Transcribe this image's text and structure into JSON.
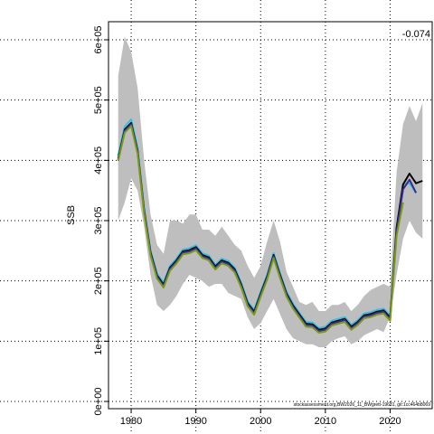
{
  "chart_data": {
    "type": "line",
    "ylabel": "SSB",
    "corner_label": "-0.074",
    "source_note": "stockassessment.org,BW2026_11_BWgrett-19681, git:1cc464b8069",
    "xlim": [
      1976.5,
      2026.5
    ],
    "ylim": [
      -12000,
      630000
    ],
    "x_ticks": [
      1980,
      1990,
      2000,
      2010,
      2020
    ],
    "x_tick_labels": [
      "1980",
      "1990",
      "2000",
      "2010",
      "2020"
    ],
    "y_ticks": [
      0,
      100000,
      200000,
      300000,
      400000,
      500000,
      600000
    ],
    "y_tick_labels": [
      "0e+00",
      "1e+05",
      "2e+05",
      "3e+05",
      "4e+05",
      "5e+05",
      "6e+05"
    ],
    "grid": "dotted",
    "band": {
      "x": [
        1978,
        1979,
        1980,
        1981,
        1982,
        1983,
        1984,
        1985,
        1986,
        1987,
        1988,
        1989,
        1990,
        1991,
        1992,
        1993,
        1994,
        1995,
        1996,
        1997,
        1998,
        1999,
        2000,
        2001,
        2002,
        2003,
        2004,
        2005,
        2006,
        2007,
        2008,
        2009,
        2010,
        2011,
        2012,
        2013,
        2014,
        2015,
        2016,
        2017,
        2018,
        2019,
        2020,
        2021,
        2022,
        2023,
        2024,
        2025
      ],
      "lower": [
        300000,
        330000,
        370000,
        350000,
        290000,
        210000,
        160000,
        150000,
        160000,
        175000,
        195000,
        210000,
        205000,
        200000,
        190000,
        195000,
        195000,
        180000,
        175000,
        170000,
        140000,
        120000,
        130000,
        150000,
        170000,
        145000,
        120000,
        105000,
        100000,
        95000,
        95000,
        90000,
        90000,
        100000,
        105000,
        108000,
        95000,
        100000,
        110000,
        115000,
        120000,
        115000,
        140000,
        210000,
        270000,
        300000,
        280000,
        270000
      ],
      "upper": [
        540000,
        605000,
        580000,
        520000,
        400000,
        310000,
        260000,
        245000,
        300000,
        300000,
        295000,
        310000,
        310000,
        285000,
        285000,
        275000,
        290000,
        275000,
        260000,
        250000,
        225000,
        205000,
        225000,
        265000,
        300000,
        265000,
        215000,
        190000,
        165000,
        160000,
        165000,
        150000,
        150000,
        160000,
        160000,
        165000,
        150000,
        160000,
        175000,
        185000,
        190000,
        195000,
        190000,
        380000,
        460000,
        490000,
        465000,
        495000
      ]
    },
    "series": [
      {
        "color": "#2ec4e6",
        "x": [
          1978,
          1979,
          1980,
          1981,
          1982,
          1983,
          1984,
          1985,
          1986,
          1987,
          1988,
          1989,
          1990,
          1991,
          1992,
          1993,
          1994,
          1995,
          1996,
          1997,
          1998,
          1999,
          2000,
          2001,
          2002,
          2003,
          2004,
          2005,
          2006,
          2007,
          2008,
          2009,
          2010,
          2011,
          2012,
          2013,
          2014,
          2015,
          2016,
          2017,
          2018,
          2019,
          2020,
          2021,
          2022,
          2023,
          2024
        ],
        "y": [
          408000,
          456000,
          468000,
          420000,
          320000,
          250000,
          212000,
          197000,
          225000,
          237000,
          252000,
          254000,
          259000,
          246000,
          242000,
          227000,
          237000,
          233000,
          222000,
          197000,
          166000,
          152000,
          182000,
          210000,
          246000,
          213000,
          182000,
          162000,
          147000,
          132000,
          131000,
          122000,
          124000,
          134000,
          137000,
          140000,
          127000,
          135000,
          146000,
          148000,
          152000,
          154000,
          142000,
          285000,
          360000,
          362000,
          346000
        ]
      },
      {
        "color": "#000000",
        "x": [
          1978,
          1979,
          1980,
          1981,
          1982,
          1983,
          1984,
          1985,
          1986,
          1987,
          1988,
          1989,
          1990,
          1991,
          1992,
          1993,
          1994,
          1995,
          1996,
          1997,
          1998,
          1999,
          2000,
          2001,
          2002,
          2003,
          2004,
          2005,
          2006,
          2007,
          2008,
          2009,
          2010,
          2011,
          2012,
          2013,
          2014,
          2015,
          2016,
          2017,
          2018,
          2019,
          2020,
          2021,
          2022,
          2023,
          2024,
          2025
        ],
        "y": [
          403000,
          451000,
          462000,
          416000,
          317000,
          247000,
          209000,
          194000,
          222000,
          234000,
          249000,
          251000,
          256000,
          243000,
          239000,
          224000,
          234000,
          230000,
          219000,
          194000,
          163000,
          149000,
          179000,
          207000,
          243000,
          210000,
          179000,
          159000,
          144000,
          129000,
          128000,
          119000,
          121000,
          131000,
          134000,
          137000,
          124000,
          132000,
          143000,
          145000,
          149000,
          151000,
          139000,
          288000,
          360000,
          378000,
          362000,
          366000
        ]
      },
      {
        "color": "#3b2a8f",
        "x": [
          1978,
          1979,
          1980,
          1981,
          1982,
          1983,
          1984,
          1985,
          1986,
          1987,
          1988,
          1989,
          1990,
          1991,
          1992,
          1993,
          1994,
          1995,
          1996,
          1997,
          1998,
          1999,
          2000,
          2001,
          2002,
          2003,
          2004,
          2005,
          2006,
          2007,
          2008,
          2009,
          2010,
          2011,
          2012,
          2013,
          2014,
          2015,
          2016,
          2017,
          2018,
          2019,
          2020,
          2021,
          2022,
          2023,
          2024
        ],
        "y": [
          401000,
          449000,
          460000,
          414000,
          315000,
          245000,
          207000,
          192000,
          220000,
          232000,
          247000,
          249000,
          254000,
          241000,
          237000,
          222000,
          232000,
          228000,
          217000,
          192000,
          161000,
          147000,
          177000,
          205000,
          241000,
          208000,
          177000,
          157000,
          142000,
          127000,
          126000,
          117000,
          119000,
          129000,
          132000,
          135000,
          122000,
          130000,
          141000,
          143000,
          147000,
          149000,
          137000,
          282000,
          352000,
          368000,
          346000
        ]
      },
      {
        "color": "#7a9a10",
        "x": [
          1978,
          1979,
          1980,
          1981,
          1982,
          1983,
          1984,
          1985,
          1986,
          1987,
          1988,
          1989,
          1990,
          1991,
          1992,
          1993,
          1994,
          1995,
          1996,
          1997,
          1998,
          1999,
          2000,
          2001,
          2002,
          2003,
          2004,
          2005,
          2006,
          2007,
          2008,
          2009,
          2010,
          2011,
          2012,
          2013,
          2014,
          2015,
          2016,
          2017,
          2018,
          2019,
          2020,
          2021,
          2022
        ],
        "y": [
          399000,
          446000,
          457000,
          411000,
          312000,
          242000,
          204000,
          189000,
          217000,
          229000,
          244000,
          246000,
          251000,
          238000,
          234000,
          219000,
          229000,
          225000,
          214000,
          189000,
          158000,
          144000,
          174000,
          202000,
          238000,
          205000,
          174000,
          154000,
          139000,
          124000,
          123000,
          114000,
          116000,
          126000,
          129000,
          132000,
          119000,
          127000,
          138000,
          140000,
          144000,
          146000,
          134000,
          275000,
          330000
        ]
      }
    ]
  }
}
